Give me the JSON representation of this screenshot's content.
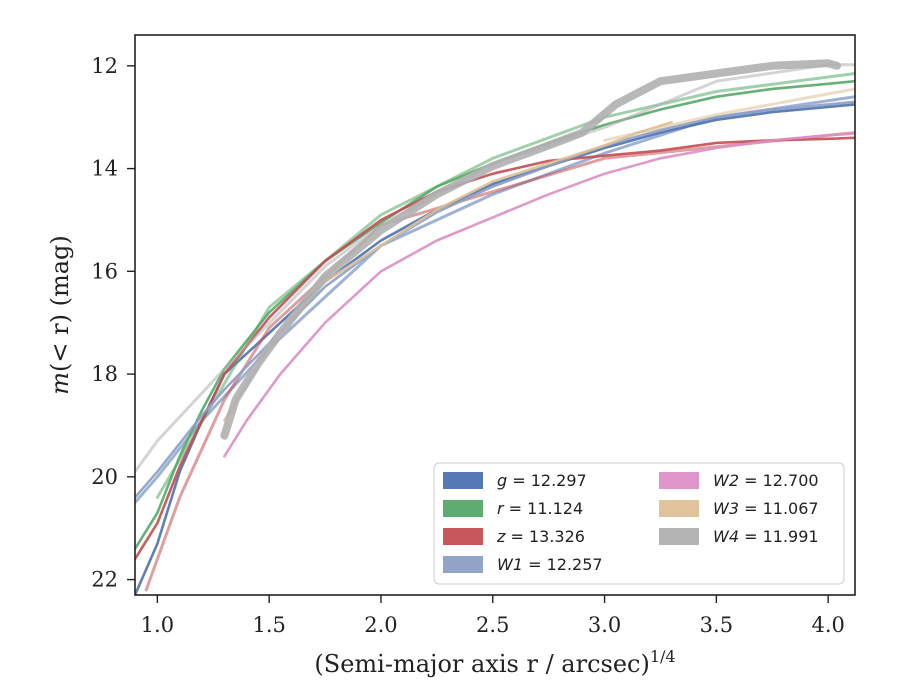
{
  "chart_data": {
    "type": "line",
    "xlabel": "(Semi-major axis r / arcsec)",
    "xlabel_sup": "1/4",
    "ylabel_m": "m",
    "ylabel_rest": "(< r) (mag)",
    "xlim": [
      0.9,
      4.12
    ],
    "ylim": [
      22.3,
      11.4
    ],
    "y_inverted": true,
    "grid": false,
    "legend_position": "lower-right",
    "legend_columns": 2,
    "x_ticks": [
      1.0,
      1.5,
      2.0,
      2.5,
      3.0,
      3.5,
      4.0
    ],
    "x_tick_labels": [
      "1.0",
      "1.5",
      "2.0",
      "2.5",
      "3.0",
      "3.5",
      "4.0"
    ],
    "y_ticks": [
      12,
      14,
      16,
      18,
      20,
      22
    ],
    "y_tick_labels": [
      "12",
      "14",
      "16",
      "18",
      "20",
      "22"
    ],
    "series": [
      {
        "name": "g",
        "legend_label": "= 12.297",
        "color": "#4c72b0",
        "points": [
          [
            0.9,
            22.3
          ],
          [
            1.0,
            21.3
          ],
          [
            1.1,
            19.9
          ],
          [
            1.2,
            18.9
          ],
          [
            1.3,
            18.0
          ],
          [
            1.5,
            17.2
          ],
          [
            1.75,
            16.2
          ],
          [
            2.0,
            15.4
          ],
          [
            2.25,
            14.8
          ],
          [
            2.5,
            14.3
          ],
          [
            2.75,
            13.95
          ],
          [
            3.0,
            13.6
          ],
          [
            3.25,
            13.3
          ],
          [
            3.5,
            13.05
          ],
          [
            3.75,
            12.9
          ],
          [
            4.0,
            12.8
          ],
          [
            4.12,
            12.75
          ]
        ],
        "band": [
          [
            0.9,
            20.5
          ],
          [
            1.0,
            20.0
          ],
          [
            1.2,
            18.9
          ],
          [
            1.5,
            17.5
          ],
          [
            2.0,
            15.5
          ],
          [
            2.5,
            14.5
          ],
          [
            3.0,
            13.7
          ],
          [
            3.5,
            13.0
          ],
          [
            4.12,
            12.6
          ]
        ]
      },
      {
        "name": "r",
        "legend_label": "= 11.124",
        "color": "#55a868",
        "points": [
          [
            0.9,
            21.4
          ],
          [
            1.0,
            20.7
          ],
          [
            1.1,
            19.6
          ],
          [
            1.2,
            18.7
          ],
          [
            1.3,
            17.9
          ],
          [
            1.5,
            16.8
          ],
          [
            1.75,
            15.8
          ],
          [
            2.0,
            15.05
          ],
          [
            2.25,
            14.35
          ],
          [
            2.5,
            13.9
          ],
          [
            2.75,
            13.5
          ],
          [
            3.0,
            13.15
          ],
          [
            3.25,
            12.85
          ],
          [
            3.5,
            12.6
          ],
          [
            3.75,
            12.45
          ],
          [
            4.0,
            12.35
          ],
          [
            4.12,
            12.3
          ]
        ],
        "band": [
          [
            1.0,
            20.4
          ],
          [
            1.5,
            16.7
          ],
          [
            2.0,
            14.9
          ],
          [
            2.5,
            13.8
          ],
          [
            3.0,
            13.0
          ],
          [
            3.5,
            12.5
          ],
          [
            4.12,
            12.15
          ]
        ]
      },
      {
        "name": "z",
        "legend_label": "= 13.326",
        "color": "#c44e52",
        "points": [
          [
            0.9,
            21.6
          ],
          [
            1.0,
            20.9
          ],
          [
            1.1,
            19.8
          ],
          [
            1.2,
            18.9
          ],
          [
            1.3,
            18.0
          ],
          [
            1.5,
            16.9
          ],
          [
            1.75,
            15.8
          ],
          [
            2.0,
            15.0
          ],
          [
            2.25,
            14.45
          ],
          [
            2.5,
            14.1
          ],
          [
            2.75,
            13.85
          ],
          [
            3.0,
            13.75
          ],
          [
            3.25,
            13.65
          ],
          [
            3.5,
            13.5
          ],
          [
            3.75,
            13.45
          ],
          [
            4.0,
            13.42
          ],
          [
            4.12,
            13.4
          ]
        ],
        "band": [
          [
            0.95,
            22.2
          ],
          [
            1.1,
            20.4
          ],
          [
            1.3,
            18.5
          ],
          [
            1.5,
            17.1
          ],
          [
            2.0,
            15.1
          ],
          [
            3.0,
            13.8
          ],
          [
            4.12,
            13.3
          ]
        ]
      },
      {
        "name": "W1",
        "legend_label": "= 12.257",
        "color": "#8c9fc4",
        "points": [
          [
            0.9,
            20.4
          ],
          [
            1.0,
            19.9
          ],
          [
            1.2,
            18.8
          ],
          [
            1.3,
            18.3
          ],
          [
            1.5,
            17.4
          ],
          [
            1.75,
            16.3
          ],
          [
            2.0,
            15.5
          ],
          [
            2.25,
            14.85
          ],
          [
            2.5,
            14.35
          ],
          [
            2.75,
            13.95
          ],
          [
            3.0,
            13.55
          ],
          [
            3.25,
            13.25
          ],
          [
            3.5,
            13.0
          ],
          [
            3.75,
            12.85
          ],
          [
            4.0,
            12.75
          ],
          [
            4.12,
            12.7
          ]
        ]
      },
      {
        "name": "W2",
        "legend_label": "= 12.700",
        "color": "#dd8fc4",
        "points": [
          [
            1.3,
            19.6
          ],
          [
            1.4,
            18.9
          ],
          [
            1.55,
            18.0
          ],
          [
            1.75,
            17.0
          ],
          [
            2.0,
            16.0
          ],
          [
            2.25,
            15.4
          ],
          [
            2.5,
            14.95
          ],
          [
            2.75,
            14.5
          ],
          [
            3.0,
            14.1
          ],
          [
            3.25,
            13.8
          ],
          [
            3.5,
            13.6
          ],
          [
            3.75,
            13.45
          ],
          [
            4.0,
            13.35
          ],
          [
            4.12,
            13.32
          ]
        ]
      },
      {
        "name": "W3",
        "legend_label": "= 11.067",
        "color": "#ddc095",
        "points": [
          [
            1.3,
            18.9
          ],
          [
            1.4,
            18.2
          ],
          [
            1.5,
            17.5
          ],
          [
            1.6,
            16.9
          ],
          [
            1.75,
            16.2
          ],
          [
            2.0,
            15.5
          ],
          [
            2.25,
            14.8
          ],
          [
            2.5,
            14.25
          ],
          [
            2.75,
            13.9
          ],
          [
            3.0,
            13.55
          ],
          [
            3.15,
            13.3
          ],
          [
            3.3,
            13.1
          ]
        ],
        "band": [
          [
            3.0,
            13.45
          ],
          [
            3.5,
            12.95
          ],
          [
            4.12,
            12.45
          ]
        ]
      },
      {
        "name": "W4",
        "legend_label": "= 11.991",
        "color": "#b0b0b0",
        "points": [
          [
            1.3,
            19.2
          ],
          [
            1.35,
            18.5
          ],
          [
            1.45,
            17.8
          ],
          [
            1.55,
            17.2
          ],
          [
            1.75,
            16.1
          ],
          [
            2.0,
            15.2
          ],
          [
            2.25,
            14.5
          ],
          [
            2.5,
            13.95
          ],
          [
            2.75,
            13.55
          ],
          [
            2.9,
            13.3
          ],
          [
            3.05,
            12.75
          ],
          [
            3.25,
            12.3
          ],
          [
            3.5,
            12.15
          ],
          [
            3.75,
            12.0
          ],
          [
            4.0,
            11.95
          ],
          [
            4.04,
            12.0
          ]
        ],
        "band": [
          [
            0.9,
            19.9
          ],
          [
            1.0,
            19.3
          ],
          [
            1.3,
            17.9
          ],
          [
            1.75,
            15.9
          ],
          [
            2.0,
            15.1
          ],
          [
            2.5,
            13.9
          ],
          [
            3.0,
            13.2
          ],
          [
            3.5,
            12.3
          ],
          [
            4.0,
            11.98
          ],
          [
            4.12,
            11.98
          ]
        ]
      }
    ]
  }
}
